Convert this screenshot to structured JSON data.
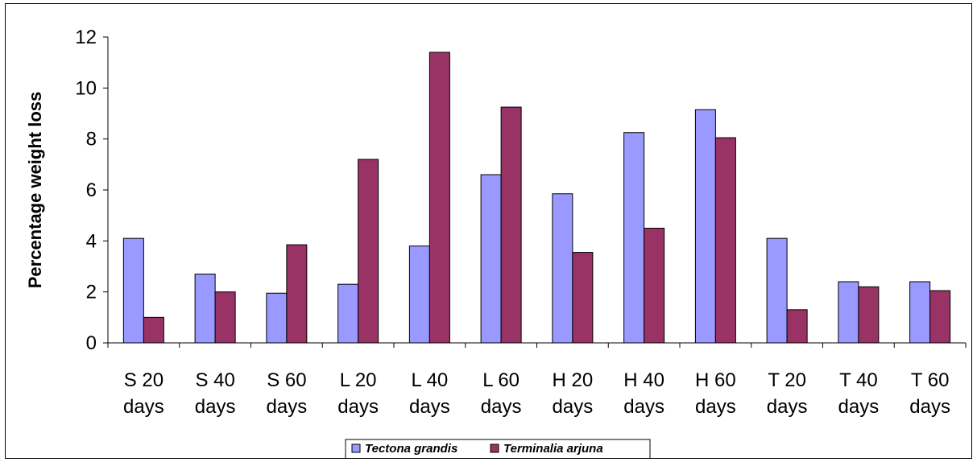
{
  "chart_data": {
    "type": "bar",
    "title": "",
    "xlabel": "",
    "ylabel": "Percentage weight loss",
    "ylim": [
      0,
      12
    ],
    "yticks": [
      "0",
      "2",
      "4",
      "6",
      "8",
      "10",
      "12"
    ],
    "grid": false,
    "legend_position": "bottom",
    "categories": [
      [
        "S 20",
        "days"
      ],
      [
        "S 40",
        "days"
      ],
      [
        "S 60",
        "days"
      ],
      [
        "L 20",
        "days"
      ],
      [
        "L 40",
        "days"
      ],
      [
        "L 60",
        "days"
      ],
      [
        "H 20",
        "days"
      ],
      [
        "H 40",
        "days"
      ],
      [
        "H 60",
        "days"
      ],
      [
        "T 20",
        "days"
      ],
      [
        "T 40",
        "days"
      ],
      [
        "T 60",
        "days"
      ]
    ],
    "series": [
      {
        "name": "Tectona grandis",
        "color": "#9999ff",
        "values": [
          4.1,
          2.7,
          1.95,
          2.3,
          3.8,
          6.6,
          5.85,
          8.25,
          9.15,
          4.1,
          2.4,
          2.4
        ]
      },
      {
        "name": "Terminalia arjuna",
        "color": "#993366",
        "values": [
          1.0,
          2.0,
          3.85,
          7.2,
          11.4,
          9.25,
          3.55,
          4.5,
          8.05,
          1.3,
          2.2,
          2.05
        ]
      }
    ]
  }
}
